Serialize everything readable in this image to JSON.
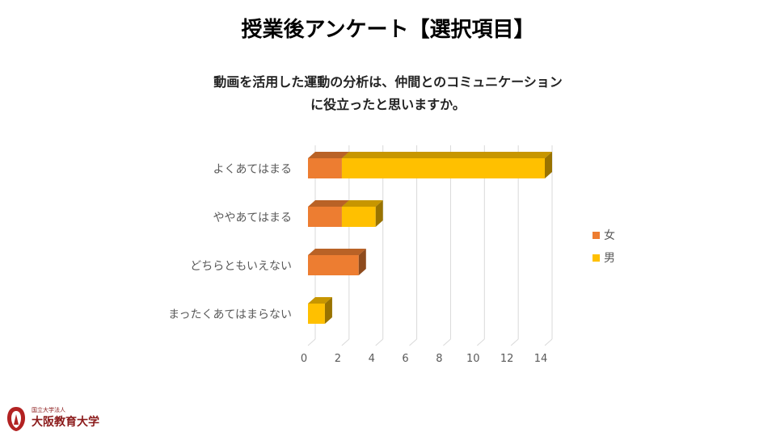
{
  "slide": {
    "title": "授業後アンケート【選択項目】"
  },
  "logo": {
    "small_text": "国立大学法人",
    "name": "大阪教育大学",
    "icon": "university-emblem-icon"
  },
  "chart_data": {
    "type": "bar",
    "orientation": "horizontal",
    "stacked": true,
    "style": "3d",
    "title_lines": [
      "動画を活用した運動の分析は、仲間とのコミュニケーション",
      "に役立ったと思いますか。"
    ],
    "categories": [
      "よくあてはまる",
      "ややあてはまる",
      "どちらともいえない",
      "まったくあてはまらない"
    ],
    "series": [
      {
        "name": "女",
        "values": [
          2,
          2,
          3,
          0
        ],
        "color": "#ED7D31"
      },
      {
        "name": "男",
        "values": [
          12,
          2,
          0,
          1
        ],
        "color": "#FFC000"
      }
    ],
    "xlim": [
      0,
      14
    ],
    "xticks": [
      0,
      2,
      4,
      6,
      8,
      10,
      12,
      14
    ],
    "grid": true,
    "legend": "right"
  }
}
